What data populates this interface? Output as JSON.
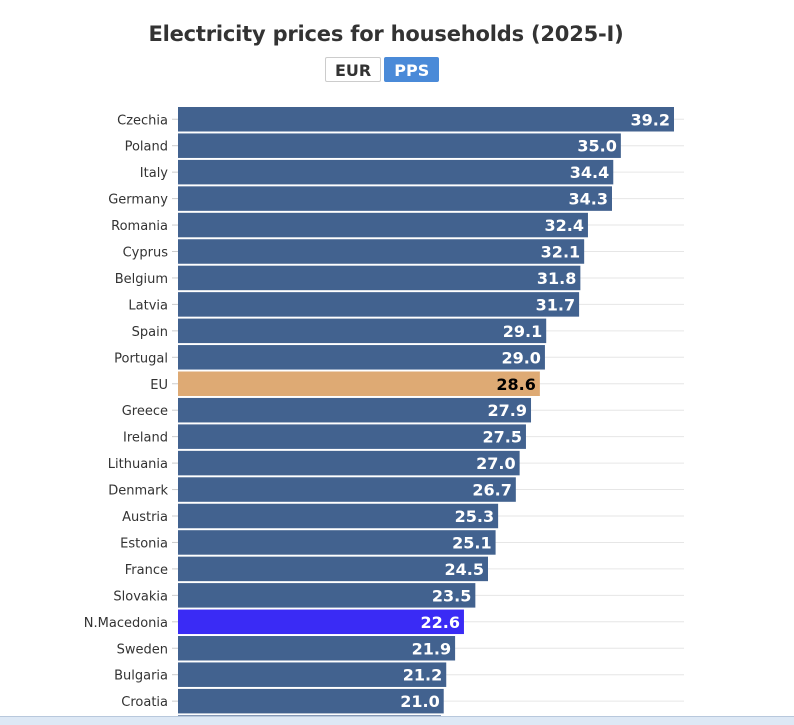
{
  "header": {
    "title": "Electricity prices for households (2025-I)",
    "toggle": [
      {
        "label": "EUR",
        "active": false
      },
      {
        "label": "PPS",
        "active": true
      }
    ]
  },
  "colors": {
    "default_bar": "#42628f",
    "eu_bar": "#deaa74",
    "highlight_bar": "#3a2bf5",
    "gridline": "#e6e6e6",
    "value_text_light": "#ffffff",
    "value_text_dark": "#000000"
  },
  "chart_data": {
    "type": "bar",
    "orientation": "horizontal",
    "title": "Electricity prices for households (2025-I)",
    "unit": "PPS",
    "xlabel": "",
    "ylabel": "",
    "xlim": [
      0,
      40
    ],
    "grid": true,
    "categories": [
      "Czechia",
      "Poland",
      "Italy",
      "Germany",
      "Romania",
      "Cyprus",
      "Belgium",
      "Latvia",
      "Spain",
      "Portugal",
      "EU",
      "Greece",
      "Ireland",
      "Lithuania",
      "Denmark",
      "Austria",
      "Estonia",
      "France",
      "Slovakia",
      "N.Macedonia",
      "Sweden",
      "Bulgaria",
      "Croatia"
    ],
    "values": [
      39.2,
      35.0,
      34.4,
      34.3,
      32.4,
      32.1,
      31.8,
      31.7,
      29.1,
      29.0,
      28.6,
      27.9,
      27.5,
      27.0,
      26.7,
      25.3,
      25.1,
      24.5,
      23.5,
      22.6,
      21.9,
      21.2,
      21.0
    ],
    "value_labels": [
      "39.2",
      "35.0",
      "34.4",
      "34.3",
      "32.4",
      "32.1",
      "31.8",
      "31.7",
      "29.1",
      "29.0",
      "28.6",
      "27.9",
      "27.5",
      "27.0",
      "26.7",
      "25.3",
      "25.1",
      "24.5",
      "23.5",
      "22.6",
      "21.9",
      "21.2",
      "21.0"
    ],
    "highlights": {
      "EU": "eu",
      "N.Macedonia": "highlight"
    },
    "truncated_next_bar": true
  }
}
